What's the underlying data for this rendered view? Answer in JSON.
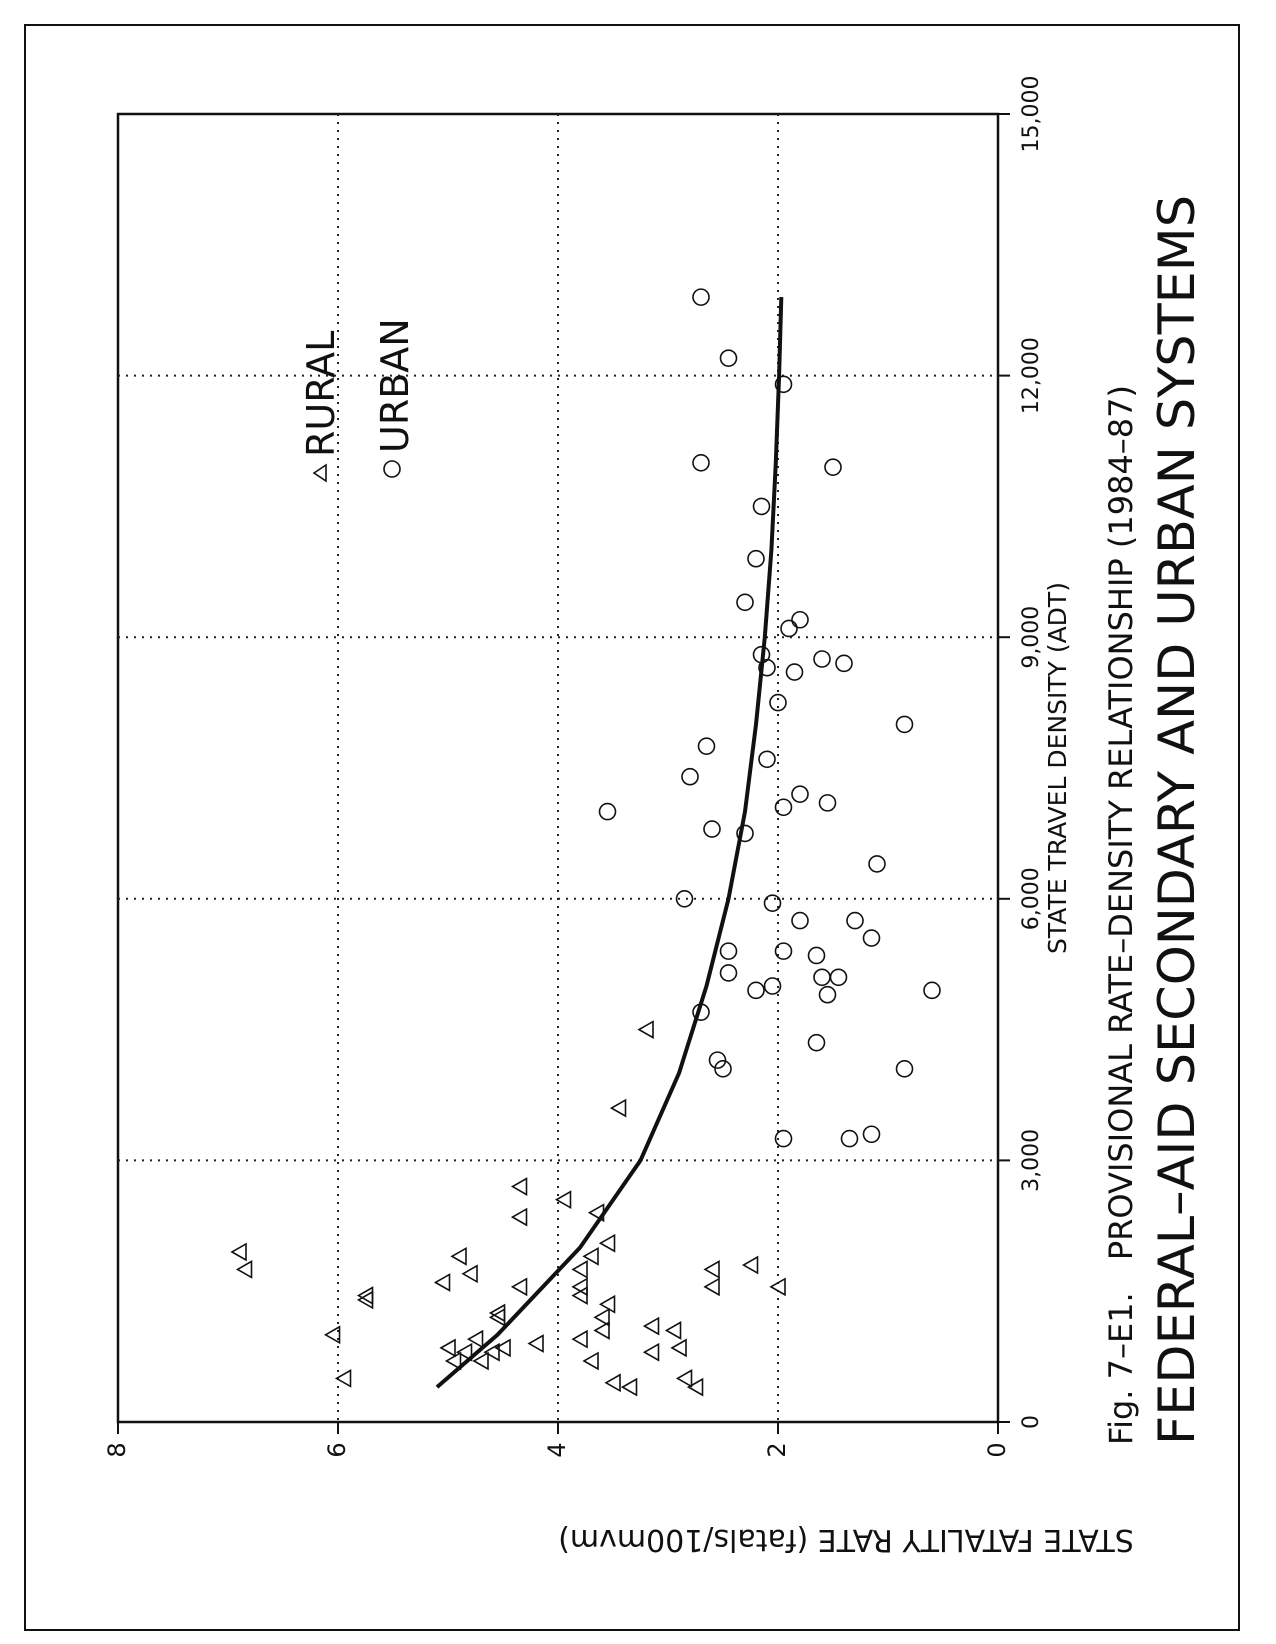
{
  "page": {
    "caption_prefix": "Fig. 7–E1.",
    "caption_line1": "PROVISIONAL RATE–DENSITY RELATIONSHIP (1984–87)",
    "caption_line2": "FEDERAL–AID SECONDARY AND URBAN SYSTEMS"
  },
  "chart_data": {
    "type": "scatter",
    "orientation": "rotated 90 degrees counter-clockwise",
    "title": "PROVISIONAL RATE–DENSITY RELATIONSHIP (1984–87) FEDERAL–AID SECONDARY AND URBAN SYSTEMS",
    "xlabel": "STATE TRAVEL DENSITY (ADT)",
    "ylabel": "STATE FATALITY RATE (fatals/100mvm)",
    "xlim": [
      0,
      15000
    ],
    "ylim": [
      0,
      8
    ],
    "x_ticks": [
      0,
      3000,
      6000,
      9000,
      12000,
      15000
    ],
    "x_tick_labels": [
      "0",
      "3,000",
      "6,000",
      "9,000",
      "12,000",
      "15,000"
    ],
    "y_ticks": [
      0,
      2,
      4,
      6,
      8
    ],
    "y_tick_labels": [
      "0",
      "2",
      "4",
      "6",
      "8"
    ],
    "grid": "dotted",
    "legend_placement": "upper-right",
    "series": [
      {
        "name": "RURAL",
        "marker": "triangle",
        "points": [
          [
            1750,
            6.85
          ],
          [
            1950,
            6.9
          ],
          [
            1400,
            5.75
          ],
          [
            1450,
            5.75
          ],
          [
            1000,
            6.05
          ],
          [
            500,
            5.95
          ],
          [
            1600,
            5.05
          ],
          [
            1900,
            4.9
          ],
          [
            1700,
            4.8
          ],
          [
            950,
            4.75
          ],
          [
            1200,
            4.55
          ],
          [
            1250,
            4.55
          ],
          [
            1550,
            4.35
          ],
          [
            2350,
            4.35
          ],
          [
            2700,
            4.35
          ],
          [
            850,
            5.0
          ],
          [
            800,
            4.85
          ],
          [
            700,
            4.95
          ],
          [
            700,
            4.7
          ],
          [
            800,
            4.6
          ],
          [
            850,
            4.5
          ],
          [
            900,
            4.2
          ],
          [
            2550,
            3.95
          ],
          [
            2400,
            3.65
          ],
          [
            2050,
            3.55
          ],
          [
            1900,
            3.7
          ],
          [
            1750,
            3.8
          ],
          [
            1550,
            3.8
          ],
          [
            1450,
            3.8
          ],
          [
            1350,
            3.55
          ],
          [
            1200,
            3.6
          ],
          [
            1050,
            3.6
          ],
          [
            950,
            3.8
          ],
          [
            700,
            3.7
          ],
          [
            450,
            3.5
          ],
          [
            400,
            3.35
          ],
          [
            3600,
            3.45
          ],
          [
            4500,
            3.2
          ],
          [
            1100,
            3.15
          ],
          [
            800,
            3.15
          ],
          [
            1050,
            2.95
          ],
          [
            850,
            2.9
          ],
          [
            500,
            2.85
          ],
          [
            400,
            2.75
          ],
          [
            1750,
            2.6
          ],
          [
            1550,
            2.6
          ],
          [
            1800,
            2.25
          ],
          [
            1550,
            2.0
          ]
        ]
      },
      {
        "name": "URBAN",
        "marker": "circle",
        "points": [
          [
            12900,
            2.7
          ],
          [
            12200,
            2.45
          ],
          [
            11900,
            1.95
          ],
          [
            11000,
            2.7
          ],
          [
            10950,
            1.5
          ],
          [
            10500,
            2.15
          ],
          [
            9900,
            2.2
          ],
          [
            9400,
            2.3
          ],
          [
            9200,
            1.8
          ],
          [
            9100,
            1.9
          ],
          [
            8800,
            2.15
          ],
          [
            8750,
            1.6
          ],
          [
            8700,
            1.4
          ],
          [
            8650,
            2.1
          ],
          [
            8600,
            1.85
          ],
          [
            8250,
            2.0
          ],
          [
            8000,
            0.85
          ],
          [
            7750,
            2.65
          ],
          [
            7600,
            2.1
          ],
          [
            7400,
            2.8
          ],
          [
            7200,
            1.8
          ],
          [
            7100,
            1.55
          ],
          [
            7050,
            1.95
          ],
          [
            7000,
            3.55
          ],
          [
            6800,
            2.6
          ],
          [
            6750,
            2.3
          ],
          [
            6400,
            1.1
          ],
          [
            6000,
            2.85
          ],
          [
            5950,
            2.05
          ],
          [
            5750,
            1.8
          ],
          [
            5750,
            1.3
          ],
          [
            5550,
            1.15
          ],
          [
            5400,
            2.45
          ],
          [
            5400,
            1.95
          ],
          [
            5350,
            1.65
          ],
          [
            5150,
            2.45
          ],
          [
            5100,
            1.6
          ],
          [
            5100,
            1.45
          ],
          [
            5000,
            2.05
          ],
          [
            4950,
            2.2
          ],
          [
            4900,
            1.55
          ],
          [
            4950,
            0.6
          ],
          [
            4700,
            2.7
          ],
          [
            4350,
            1.65
          ],
          [
            4150,
            2.55
          ],
          [
            4050,
            2.5
          ],
          [
            4050,
            0.85
          ],
          [
            3250,
            1.35
          ],
          [
            3300,
            1.15
          ],
          [
            3250,
            1.95
          ]
        ]
      }
    ],
    "fit_curve": {
      "description": "smooth decreasing curve",
      "points": [
        [
          400,
          5.1
        ],
        [
          1000,
          4.55
        ],
        [
          2000,
          3.8
        ],
        [
          3000,
          3.25
        ],
        [
          4000,
          2.9
        ],
        [
          5000,
          2.65
        ],
        [
          6000,
          2.45
        ],
        [
          7000,
          2.3
        ],
        [
          8000,
          2.2
        ],
        [
          9000,
          2.12
        ],
        [
          10000,
          2.06
        ],
        [
          11000,
          2.02
        ],
        [
          12000,
          1.99
        ],
        [
          12900,
          1.97
        ]
      ]
    }
  }
}
